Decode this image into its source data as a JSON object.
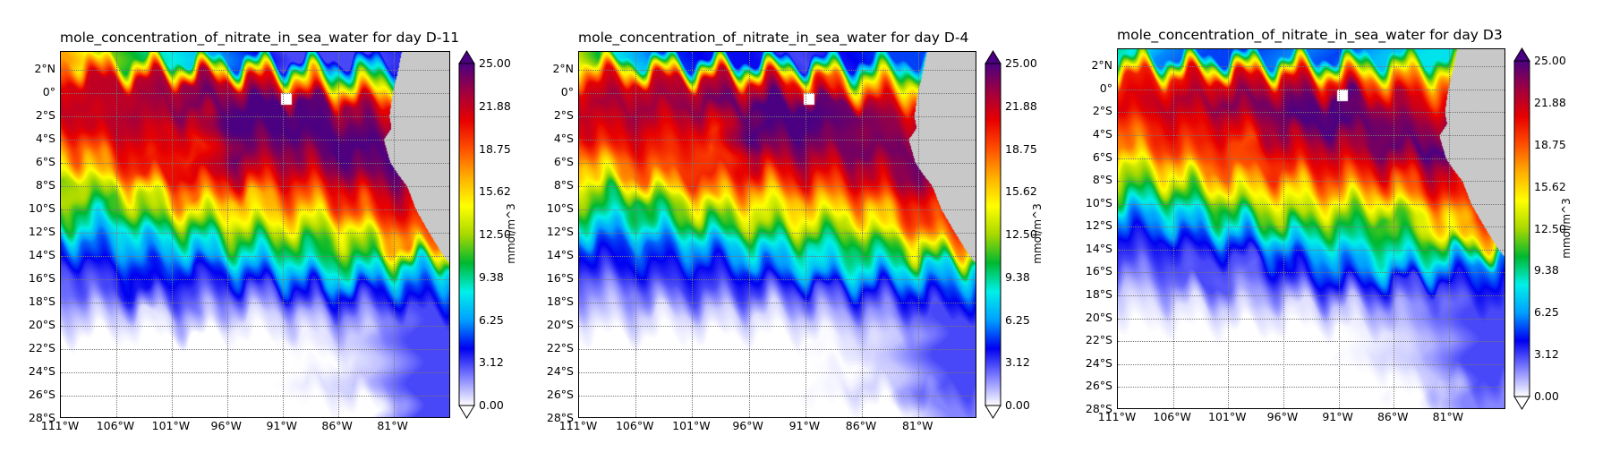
{
  "chart_data": [
    {
      "type": "heatmap",
      "title": "mole_concentration_of_nitrate_in_sea_water for day D-11",
      "colorbar_label": "mmol/m^3",
      "colorbar_ticks": [
        "25.00",
        "21.88",
        "18.75",
        "15.62",
        "12.50",
        "9.38",
        "6.25",
        "3.12",
        "0.00"
      ],
      "clim": [
        0,
        25
      ],
      "colormap": [
        "#ffffff",
        "#8080ff",
        "#0000f0",
        "#00a0ff",
        "#00f0e8",
        "#00b830",
        "#a8d800",
        "#ffff00",
        "#ffb000",
        "#ff5000",
        "#e80000",
        "#a00040",
        "#4b0082"
      ],
      "land_color": "#c8c8c8",
      "xlim": [
        -111,
        -75.8
      ],
      "ylim": [
        -28,
        3.5
      ],
      "x_ticks": [
        -111,
        -106,
        -101,
        -96,
        -91,
        -86,
        -81
      ],
      "x_tick_labels": [
        "111°W",
        "106°W",
        "101°W",
        "96°W",
        "91°W",
        "86°W",
        "81°W"
      ],
      "y_ticks": [
        2,
        0,
        -2,
        -4,
        -6,
        -8,
        -10,
        -12,
        -14,
        -16,
        -18,
        -20,
        -22,
        -24,
        -26,
        -28
      ],
      "y_tick_labels": [
        "2°N",
        "0°",
        "2°S",
        "4°S",
        "6°S",
        "8°S",
        "10°S",
        "12°S",
        "14°S",
        "16°S",
        "18°S",
        "20°S",
        "22°S",
        "24°S",
        "26°S",
        "28°S"
      ],
      "grid_lat": [
        3,
        1,
        -1,
        -3,
        -5,
        -7,
        -9,
        -11,
        -13,
        -15,
        -17,
        -19,
        -21,
        -23,
        -25,
        -27
      ],
      "grid_lon": [
        -111,
        -107,
        -103,
        -99,
        -95,
        -91,
        -87,
        -83,
        -79
      ],
      "values": [
        [
          17,
          12,
          9,
          7,
          5,
          3,
          3,
          3,
          4
        ],
        [
          21,
          22,
          22,
          23,
          22,
          20,
          14,
          12,
          12
        ],
        [
          22,
          22,
          23,
          24,
          25,
          25,
          24,
          21,
          20
        ],
        [
          20,
          22,
          22,
          21,
          25,
          25,
          25,
          24,
          23
        ],
        [
          17,
          20,
          21,
          20,
          24,
          23,
          25,
          25,
          25
        ],
        [
          12,
          16,
          20,
          21,
          22,
          21,
          22,
          24,
          24
        ],
        [
          13,
          11,
          14,
          18,
          16,
          18,
          19,
          21,
          22
        ],
        [
          10,
          8,
          11,
          12,
          14,
          15,
          14,
          18,
          20
        ],
        [
          5,
          6,
          7,
          8,
          10,
          10,
          11,
          13,
          18
        ],
        [
          3,
          4,
          5,
          4,
          6,
          7,
          9,
          9,
          8
        ],
        [
          2,
          3,
          4,
          3,
          3,
          3,
          5,
          4,
          5
        ],
        [
          1,
          1,
          0.5,
          2,
          0.5,
          1,
          2,
          2,
          3
        ],
        [
          0,
          0,
          0,
          0,
          0,
          0,
          0.5,
          1,
          3
        ],
        [
          0,
          0,
          0,
          0,
          0,
          0,
          0,
          1,
          3
        ],
        [
          0,
          0,
          0,
          0,
          0,
          0,
          0.5,
          1,
          3
        ],
        [
          0,
          0,
          0,
          0,
          0,
          0,
          0,
          0,
          3
        ]
      ]
    },
    {
      "type": "heatmap",
      "title": "mole_concentration_of_nitrate_in_sea_water for day D-4",
      "colorbar_label": "mmol/m^3",
      "colorbar_ticks": [
        "25.00",
        "21.88",
        "18.75",
        "15.62",
        "12.50",
        "9.38",
        "6.25",
        "3.12",
        "0.00"
      ],
      "clim": [
        0,
        25
      ],
      "colormap": [
        "#ffffff",
        "#8080ff",
        "#0000f0",
        "#00a0ff",
        "#00f0e8",
        "#00b830",
        "#a8d800",
        "#ffff00",
        "#ffb000",
        "#ff5000",
        "#e80000",
        "#a00040",
        "#4b0082"
      ],
      "land_color": "#c8c8c8",
      "xlim": [
        -111,
        -75.8
      ],
      "ylim": [
        -28,
        3.5
      ],
      "x_ticks": [
        -111,
        -106,
        -101,
        -96,
        -91,
        -86,
        -81
      ],
      "x_tick_labels": [
        "111°W",
        "106°W",
        "101°W",
        "96°W",
        "91°W",
        "86°W",
        "81°W"
      ],
      "y_ticks": [
        2,
        0,
        -2,
        -4,
        -6,
        -8,
        -10,
        -12,
        -14,
        -16,
        -18,
        -20,
        -22,
        -24,
        -26,
        -28
      ],
      "y_tick_labels": [
        "2°N",
        "0°",
        "2°S",
        "4°S",
        "6°S",
        "8°S",
        "10°S",
        "12°S",
        "14°S",
        "16°S",
        "18°S",
        "20°S",
        "22°S",
        "24°S",
        "26°S",
        "28°S"
      ],
      "grid_lat": [
        3,
        1,
        -1,
        -3,
        -5,
        -7,
        -9,
        -11,
        -13,
        -15,
        -17,
        -19,
        -21,
        -23,
        -25,
        -27
      ],
      "grid_lon": [
        -111,
        -107,
        -103,
        -99,
        -95,
        -91,
        -87,
        -83,
        -79
      ],
      "values": [
        [
          14,
          8,
          5,
          4,
          4,
          3,
          4,
          5,
          5
        ],
        [
          21,
          21,
          22,
          22,
          21,
          20,
          15,
          14,
          14
        ],
        [
          22,
          23,
          23,
          24,
          25,
          25,
          24,
          21,
          20
        ],
        [
          21,
          22,
          21,
          21,
          25,
          25,
          24,
          23,
          23
        ],
        [
          18,
          20,
          20,
          19,
          24,
          23,
          24,
          24,
          25
        ],
        [
          14,
          17,
          19,
          20,
          20,
          21,
          21,
          23,
          24
        ],
        [
          12,
          10,
          13,
          17,
          15,
          17,
          18,
          20,
          22
        ],
        [
          9,
          8,
          10,
          11,
          13,
          14,
          13,
          17,
          20
        ],
        [
          5,
          5,
          6,
          7,
          9,
          9,
          10,
          12,
          17
        ],
        [
          3,
          4,
          4,
          4,
          5,
          7,
          8,
          8,
          8
        ],
        [
          2,
          2,
          3,
          3,
          3,
          3,
          4,
          4,
          5
        ],
        [
          0.5,
          1,
          0.5,
          1,
          0.5,
          1,
          1.5,
          2,
          3
        ],
        [
          0,
          0,
          0,
          0,
          0,
          0,
          0.5,
          1,
          3
        ],
        [
          0,
          0,
          0,
          0,
          0,
          0,
          0,
          1,
          3
        ],
        [
          0,
          0,
          0,
          0,
          0,
          0,
          0.5,
          1,
          3
        ],
        [
          0,
          0,
          0,
          0,
          0,
          0,
          0,
          0,
          2
        ]
      ]
    },
    {
      "type": "heatmap",
      "title": "mole_concentration_of_nitrate_in_sea_water for day D3",
      "colorbar_label": "mmol/m^3",
      "colorbar_ticks": [
        "25.00",
        "21.88",
        "18.75",
        "15.62",
        "12.50",
        "9.38",
        "6.25",
        "3.12",
        "0.00"
      ],
      "clim": [
        0,
        25
      ],
      "colormap": [
        "#ffffff",
        "#8080ff",
        "#0000f0",
        "#00a0ff",
        "#00f0e8",
        "#00b830",
        "#a8d800",
        "#ffff00",
        "#ffb000",
        "#ff5000",
        "#e80000",
        "#a00040",
        "#4b0082"
      ],
      "land_color": "#c8c8c8",
      "xlim": [
        -111,
        -75.8
      ],
      "ylim": [
        -28,
        3.5
      ],
      "x_ticks": [
        -111,
        -106,
        -101,
        -96,
        -91,
        -86,
        -81
      ],
      "x_tick_labels": [
        "111°W",
        "106°W",
        "101°W",
        "96°W",
        "91°W",
        "86°W",
        "81°W"
      ],
      "y_ticks": [
        2,
        0,
        -2,
        -4,
        -6,
        -8,
        -10,
        -12,
        -14,
        -16,
        -18,
        -20,
        -22,
        -24,
        -26,
        -28
      ],
      "y_tick_labels": [
        "2°N",
        "0°",
        "2°S",
        "4°S",
        "6°S",
        "8°S",
        "10°S",
        "12°S",
        "14°S",
        "16°S",
        "18°S",
        "20°S",
        "22°S",
        "24°S",
        "26°S",
        "28°S"
      ],
      "grid_lat": [
        3,
        1,
        -1,
        -3,
        -5,
        -7,
        -9,
        -11,
        -13,
        -15,
        -17,
        -19,
        -21,
        -23,
        -25,
        -27
      ],
      "grid_lon": [
        -111,
        -107,
        -103,
        -99,
        -95,
        -91,
        -87,
        -83,
        -79
      ],
      "values": [
        [
          9,
          6,
          5,
          5,
          6,
          5,
          7,
          8,
          8
        ],
        [
          20,
          20,
          21,
          21,
          21,
          19,
          17,
          17,
          16
        ],
        [
          21,
          22,
          23,
          24,
          24,
          25,
          23,
          21,
          20
        ],
        [
          19,
          21,
          21,
          22,
          25,
          25,
          24,
          23,
          22
        ],
        [
          17,
          19,
          20,
          19,
          22,
          22,
          24,
          25,
          25
        ],
        [
          13,
          15,
          18,
          19,
          20,
          20,
          21,
          22,
          23
        ],
        [
          11,
          10,
          12,
          15,
          15,
          17,
          16,
          19,
          21
        ],
        [
          6,
          7,
          9,
          11,
          13,
          12,
          11,
          15,
          19
        ],
        [
          4,
          4,
          5,
          6,
          8,
          9,
          10,
          11,
          16
        ],
        [
          3,
          3,
          3,
          3,
          5,
          6,
          8,
          8,
          6
        ],
        [
          1,
          2,
          3,
          2,
          3,
          4,
          4,
          3,
          4
        ],
        [
          0.5,
          0.5,
          0.5,
          1,
          0.5,
          1,
          1.5,
          2,
          3
        ],
        [
          0,
          0,
          0,
          0,
          0,
          0,
          0.5,
          1.5,
          3
        ],
        [
          0,
          0,
          0,
          0,
          0,
          0,
          0.5,
          1,
          3
        ],
        [
          0,
          0,
          0,
          0,
          0,
          0,
          0,
          1,
          3
        ],
        [
          0,
          0,
          0,
          0,
          0,
          0,
          0,
          0,
          2
        ]
      ]
    }
  ]
}
